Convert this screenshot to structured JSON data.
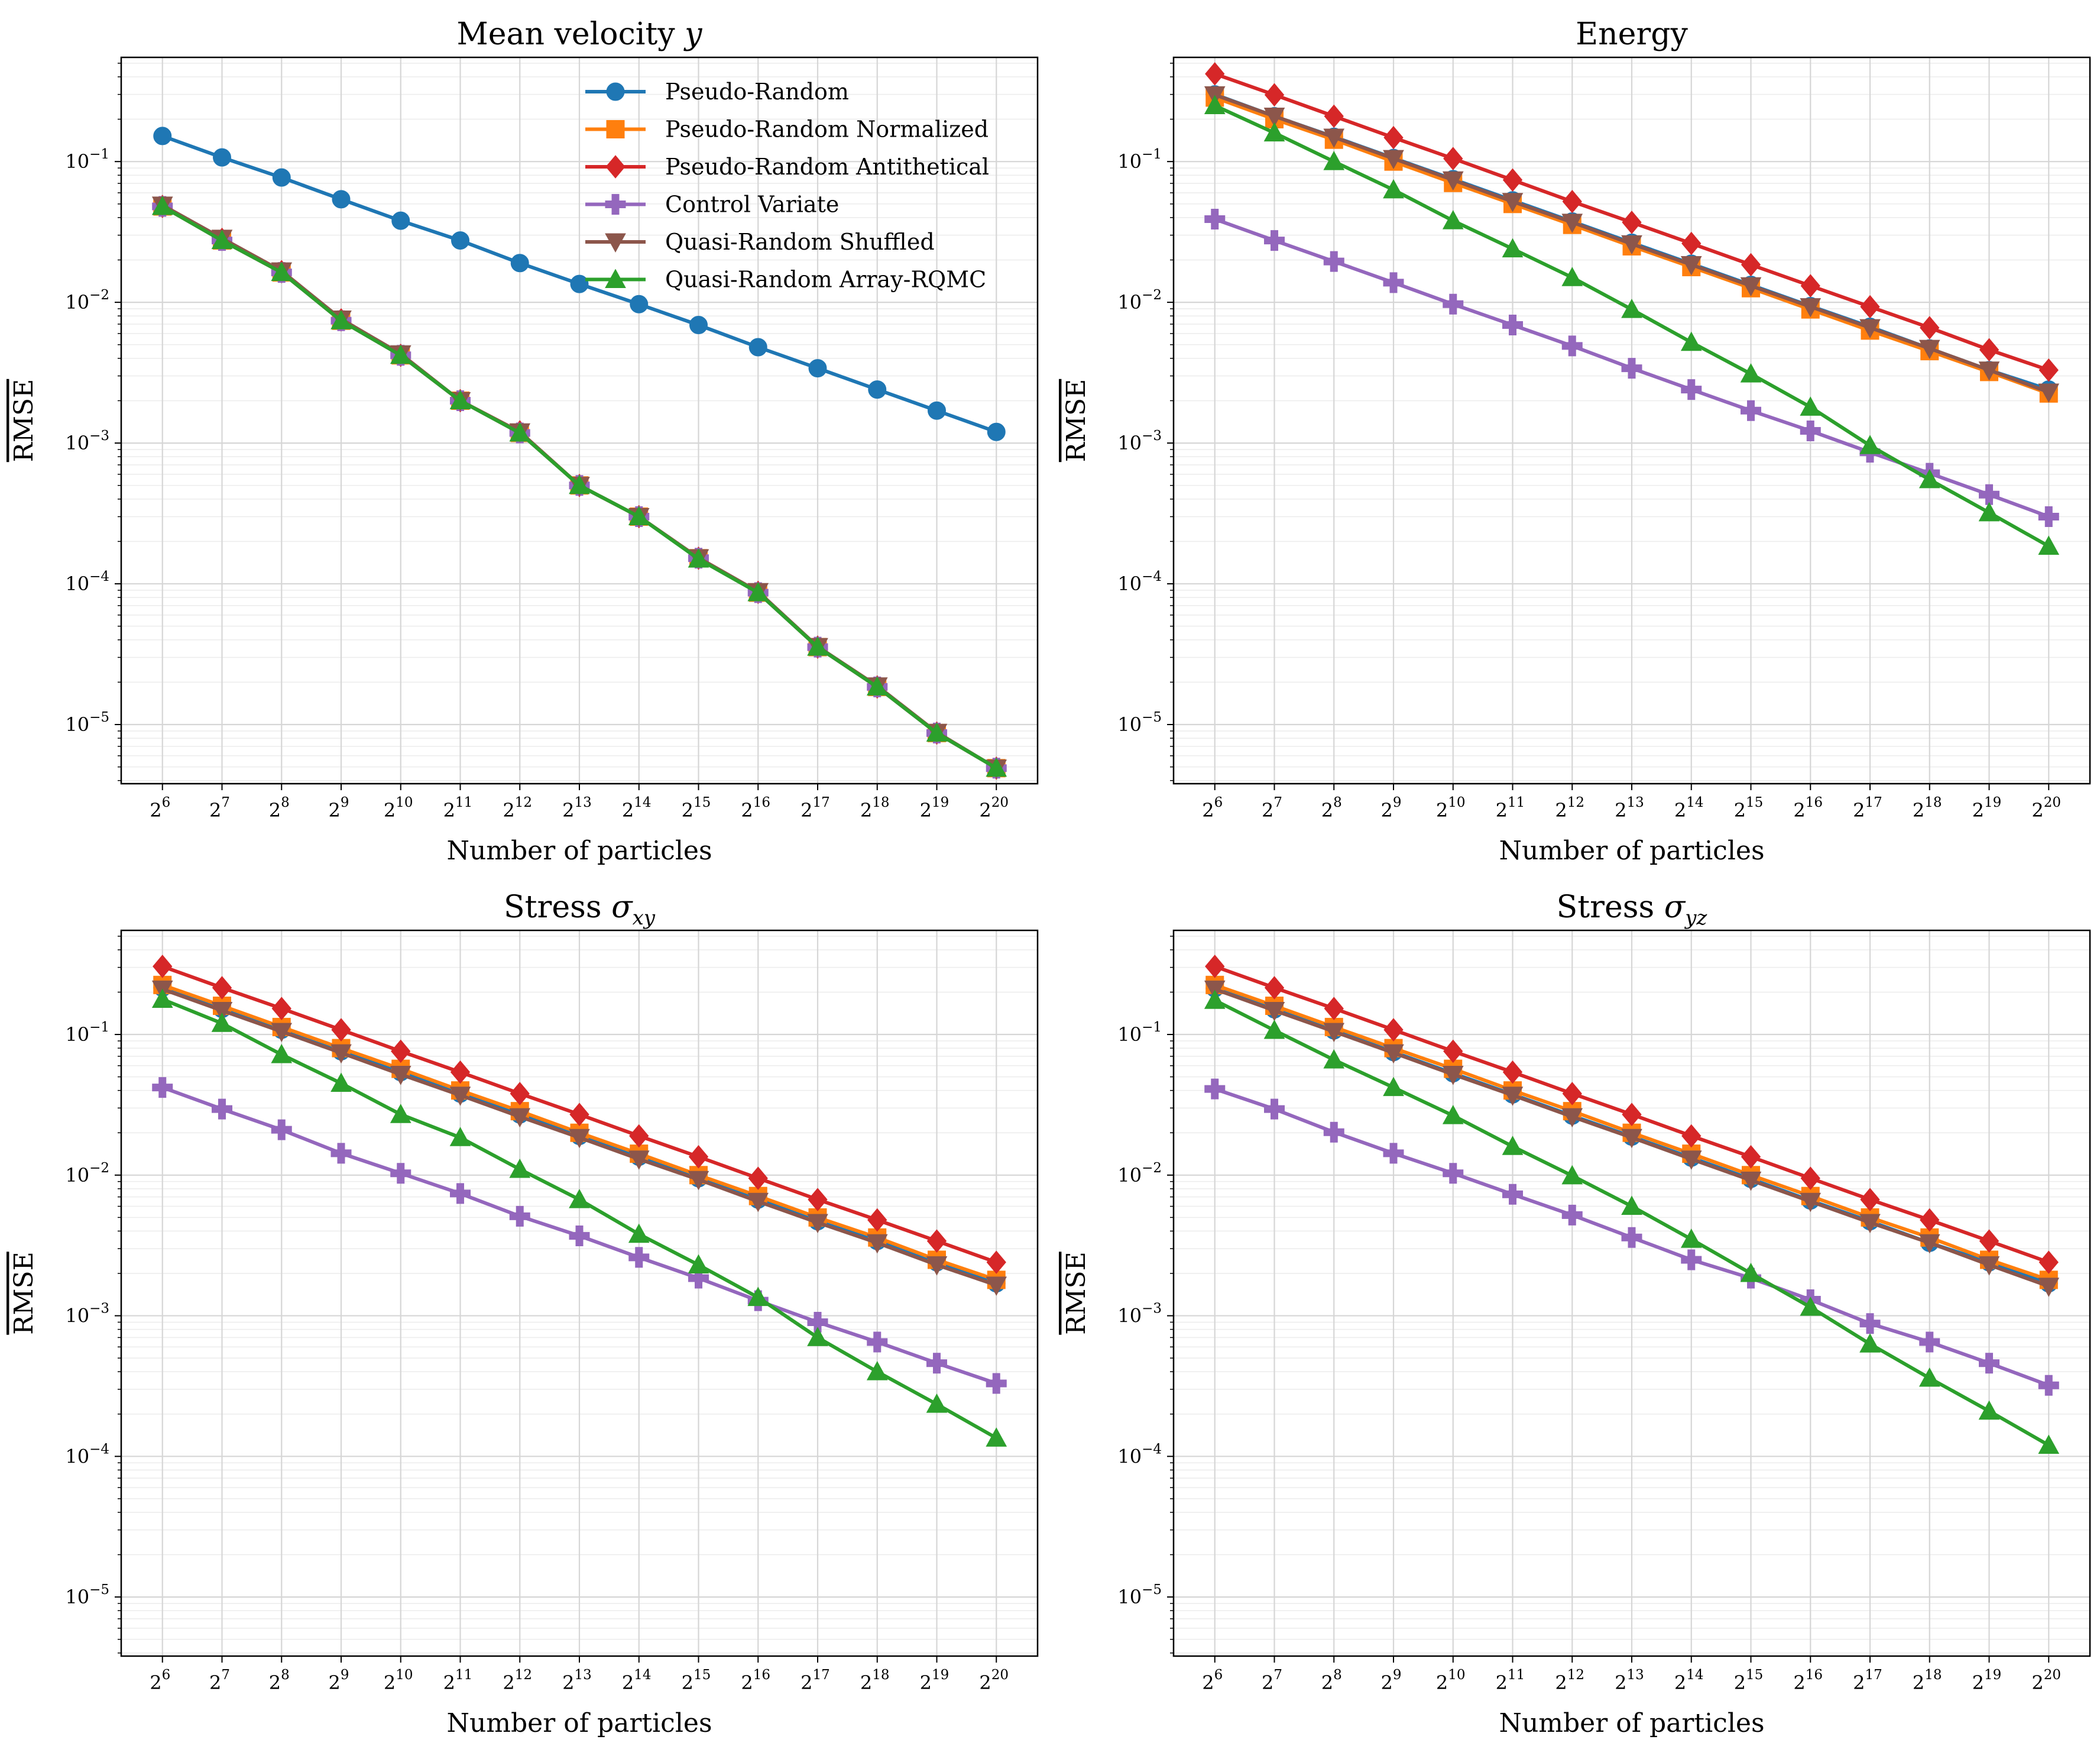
{
  "figure": {
    "xlabel": "Number of particles",
    "ylabel": "RMSE",
    "x_tick_base": "2",
    "x_exponents": [
      6,
      7,
      8,
      9,
      10,
      11,
      12,
      13,
      14,
      15,
      16,
      17,
      18,
      19,
      20
    ],
    "y_tick_base": "10",
    "y_tick_exponents": [
      "−1",
      "−2",
      "−3",
      "−4",
      "−5"
    ]
  },
  "legend": {
    "items": [
      {
        "label": "Pseudo-Random",
        "color": "#1f77b4",
        "marker": "circle"
      },
      {
        "label": "Pseudo-Random Normalized",
        "color": "#ff7f0e",
        "marker": "square"
      },
      {
        "label": "Pseudo-Random Antithetical",
        "color": "#d62728",
        "marker": "diamond"
      },
      {
        "label": "Control Variate",
        "color": "#9467bd",
        "marker": "plus"
      },
      {
        "label": "Quasi-Random Shuffled",
        "color": "#8c564b",
        "marker": "triangle-down"
      },
      {
        "label": "Quasi-Random Array-RQMC",
        "color": "#2ca02c",
        "marker": "triangle-up"
      }
    ]
  },
  "chart_data": [
    {
      "type": "line",
      "title_prefix": "Mean velocity ",
      "title_symbol": "y",
      "title_sub": "",
      "xscale": "log2",
      "yscale": "log10",
      "ylim": [
        3.8e-06,
        0.55
      ],
      "x": [
        64,
        128,
        256,
        512,
        1024,
        2048,
        4096,
        8192,
        16384,
        32768,
        65536,
        131072,
        262144,
        524288,
        1048576
      ],
      "series": [
        {
          "name": "Pseudo-Random",
          "color": "#1f77b4",
          "marker": "circle",
          "values": [
            0.152,
            0.107,
            0.077,
            0.054,
            0.038,
            0.0275,
            0.019,
            0.0135,
            0.0097,
            0.0069,
            0.0048,
            0.0034,
            0.0024,
            0.0017,
            0.0012
          ]
        },
        {
          "name": "Pseudo-Random Normalized",
          "color": "#ff7f0e",
          "marker": "square",
          "values": [
            0.048,
            0.0275,
            0.0163,
            0.0074,
            0.0042,
            0.002,
            0.00118,
            0.0005,
            0.0003,
            0.000152,
            8.65e-05,
            3.55e-05,
            1.85e-05,
            8.7e-06,
            4.9e-06
          ]
        },
        {
          "name": "Pseudo-Random Antithetical",
          "color": "#d62728",
          "marker": "diamond",
          "values": [
            0.048,
            0.028,
            0.0165,
            0.0075,
            0.0042,
            0.002,
            0.0012,
            0.0005,
            0.0003,
            0.000152,
            8.7e-05,
            3.55e-05,
            1.85e-05,
            8.7e-06,
            4.9e-06
          ]
        },
        {
          "name": "Control Variate",
          "color": "#9467bd",
          "marker": "plus",
          "values": [
            0.048,
            0.0275,
            0.0163,
            0.0074,
            0.0042,
            0.002,
            0.00118,
            0.0005,
            0.0003,
            0.000152,
            8.65e-05,
            3.55e-05,
            1.85e-05,
            8.7e-06,
            4.9e-06
          ]
        },
        {
          "name": "Quasi-Random Shuffled",
          "color": "#8c564b",
          "marker": "triangle-down",
          "values": [
            0.049,
            0.0285,
            0.0167,
            0.0076,
            0.0043,
            0.002,
            0.0012,
            0.0005,
            0.0003,
            0.000153,
            8.8e-05,
            3.58e-05,
            1.88e-05,
            8.8e-06,
            4.9e-06
          ]
        },
        {
          "name": "Quasi-Random Array-RQMC",
          "color": "#2ca02c",
          "marker": "triangle-up",
          "values": [
            0.048,
            0.0275,
            0.0163,
            0.0074,
            0.0042,
            0.002,
            0.00118,
            0.0005,
            0.0003,
            0.00015,
            8.65e-05,
            3.55e-05,
            1.85e-05,
            8.7e-06,
            4.9e-06
          ]
        }
      ]
    },
    {
      "type": "line",
      "title_prefix": "Energy",
      "title_symbol": "",
      "title_sub": "",
      "xscale": "log2",
      "yscale": "log10",
      "ylim": [
        3.8e-06,
        0.55
      ],
      "x": [
        64,
        128,
        256,
        512,
        1024,
        2048,
        4096,
        8192,
        16384,
        32768,
        65536,
        131072,
        262144,
        524288,
        1048576
      ],
      "series": [
        {
          "name": "Pseudo-Random",
          "color": "#1f77b4",
          "marker": "circle",
          "values": [
            0.3,
            0.21,
            0.15,
            0.106,
            0.075,
            0.053,
            0.0375,
            0.0265,
            0.0188,
            0.0133,
            0.0094,
            0.0067,
            0.0047,
            0.0033,
            0.0024
          ]
        },
        {
          "name": "Pseudo-Random Normalized",
          "color": "#ff7f0e",
          "marker": "square",
          "values": [
            0.285,
            0.2,
            0.143,
            0.1,
            0.0705,
            0.05,
            0.0355,
            0.025,
            0.0178,
            0.0126,
            0.0089,
            0.0063,
            0.0045,
            0.0032,
            0.00225
          ]
        },
        {
          "name": "Pseudo-Random Antithetical",
          "color": "#d62728",
          "marker": "diamond",
          "values": [
            0.42,
            0.298,
            0.21,
            0.148,
            0.105,
            0.074,
            0.052,
            0.037,
            0.0262,
            0.0185,
            0.0131,
            0.0093,
            0.0066,
            0.0046,
            0.0033
          ]
        },
        {
          "name": "Control Variate",
          "color": "#9467bd",
          "marker": "plus",
          "values": [
            0.039,
            0.0275,
            0.0195,
            0.0138,
            0.0097,
            0.0069,
            0.0049,
            0.0034,
            0.0024,
            0.0017,
            0.00122,
            0.00086,
            0.00061,
            0.00043,
            0.0003
          ]
        },
        {
          "name": "Quasi-Random Shuffled",
          "color": "#8c564b",
          "marker": "triangle-down",
          "values": [
            0.298,
            0.21,
            0.149,
            0.105,
            0.074,
            0.052,
            0.037,
            0.026,
            0.0185,
            0.0131,
            0.0093,
            0.0066,
            0.0047,
            0.0033,
            0.0023
          ]
        },
        {
          "name": "Quasi-Random Array-RQMC",
          "color": "#2ca02c",
          "marker": "triangle-up",
          "values": [
            0.25,
            0.16,
            0.1,
            0.063,
            0.038,
            0.024,
            0.015,
            0.0089,
            0.0052,
            0.0031,
            0.0018,
            0.00096,
            0.00055,
            0.00032,
            0.000185
          ]
        }
      ]
    },
    {
      "type": "line",
      "title_prefix": "Stress ",
      "title_symbol": "σ",
      "title_sub": "xy",
      "xscale": "log2",
      "yscale": "log10",
      "ylim": [
        3.8e-06,
        0.55
      ],
      "x": [
        64,
        128,
        256,
        512,
        1024,
        2048,
        4096,
        8192,
        16384,
        32768,
        65536,
        131072,
        262144,
        524288,
        1048576
      ],
      "series": [
        {
          "name": "Pseudo-Random",
          "color": "#1f77b4",
          "marker": "circle",
          "values": [
            0.215,
            0.152,
            0.108,
            0.076,
            0.054,
            0.038,
            0.027,
            0.019,
            0.0135,
            0.0095,
            0.0067,
            0.0047,
            0.0034,
            0.0024,
            0.0017
          ]
        },
        {
          "name": "Pseudo-Random Normalized",
          "color": "#ff7f0e",
          "marker": "square",
          "values": [
            0.225,
            0.16,
            0.113,
            0.08,
            0.057,
            0.04,
            0.0285,
            0.02,
            0.0142,
            0.01,
            0.0071,
            0.005,
            0.0036,
            0.0025,
            0.0018
          ]
        },
        {
          "name": "Pseudo-Random Antithetical",
          "color": "#d62728",
          "marker": "diamond",
          "values": [
            0.305,
            0.215,
            0.153,
            0.108,
            0.076,
            0.054,
            0.038,
            0.027,
            0.019,
            0.0135,
            0.0095,
            0.0067,
            0.0048,
            0.0034,
            0.0024
          ]
        },
        {
          "name": "Control Variate",
          "color": "#9467bd",
          "marker": "plus",
          "values": [
            0.042,
            0.0295,
            0.021,
            0.0143,
            0.0103,
            0.0074,
            0.0051,
            0.0037,
            0.0026,
            0.00185,
            0.00128,
            0.0009,
            0.00065,
            0.00046,
            0.00033
          ]
        },
        {
          "name": "Quasi-Random Shuffled",
          "color": "#8c564b",
          "marker": "triangle-down",
          "values": [
            0.21,
            0.148,
            0.105,
            0.074,
            0.052,
            0.037,
            0.026,
            0.0185,
            0.013,
            0.0093,
            0.0065,
            0.0046,
            0.0033,
            0.0023,
            0.00165
          ]
        },
        {
          "name": "Quasi-Random Array-RQMC",
          "color": "#2ca02c",
          "marker": "triangle-up",
          "values": [
            0.178,
            0.12,
            0.072,
            0.045,
            0.027,
            0.0185,
            0.011,
            0.0067,
            0.0038,
            0.0023,
            0.00135,
            0.0007,
            0.0004,
            0.000235,
            0.000135
          ]
        }
      ]
    },
    {
      "type": "line",
      "title_prefix": "Stress ",
      "title_symbol": "σ",
      "title_sub": "yz",
      "xscale": "log2",
      "yscale": "log10",
      "ylim": [
        3.8e-06,
        0.55
      ],
      "x": [
        64,
        128,
        256,
        512,
        1024,
        2048,
        4096,
        8192,
        16384,
        32768,
        65536,
        131072,
        262144,
        524288,
        1048576
      ],
      "series": [
        {
          "name": "Pseudo-Random",
          "color": "#1f77b4",
          "marker": "circle",
          "values": [
            0.213,
            0.151,
            0.107,
            0.075,
            0.053,
            0.0375,
            0.0265,
            0.0188,
            0.0133,
            0.0094,
            0.0066,
            0.0047,
            0.0033,
            0.0024,
            0.0017
          ]
        },
        {
          "name": "Pseudo-Random Normalized",
          "color": "#ff7f0e",
          "marker": "square",
          "values": [
            0.225,
            0.16,
            0.113,
            0.08,
            0.057,
            0.04,
            0.0285,
            0.02,
            0.0142,
            0.01,
            0.0071,
            0.005,
            0.0036,
            0.0025,
            0.0018
          ]
        },
        {
          "name": "Pseudo-Random Antithetical",
          "color": "#d62728",
          "marker": "diamond",
          "values": [
            0.305,
            0.215,
            0.153,
            0.108,
            0.076,
            0.054,
            0.038,
            0.027,
            0.019,
            0.0135,
            0.0095,
            0.0067,
            0.0048,
            0.0034,
            0.0024
          ]
        },
        {
          "name": "Control Variate",
          "color": "#9467bd",
          "marker": "plus",
          "values": [
            0.041,
            0.0295,
            0.0202,
            0.0143,
            0.0103,
            0.0073,
            0.0052,
            0.0036,
            0.0025,
            0.00185,
            0.0013,
            0.00088,
            0.00065,
            0.00046,
            0.00032
          ]
        },
        {
          "name": "Quasi-Random Shuffled",
          "color": "#8c564b",
          "marker": "triangle-down",
          "values": [
            0.21,
            0.148,
            0.105,
            0.074,
            0.052,
            0.037,
            0.026,
            0.0185,
            0.013,
            0.0092,
            0.0065,
            0.0046,
            0.0033,
            0.0023,
            0.00162
          ]
        },
        {
          "name": "Quasi-Random Array-RQMC",
          "color": "#2ca02c",
          "marker": "triangle-up",
          "values": [
            0.175,
            0.107,
            0.066,
            0.042,
            0.0265,
            0.016,
            0.0099,
            0.006,
            0.0035,
            0.002,
            0.00115,
            0.00063,
            0.00036,
            0.00021,
            0.00012
          ]
        }
      ]
    }
  ]
}
